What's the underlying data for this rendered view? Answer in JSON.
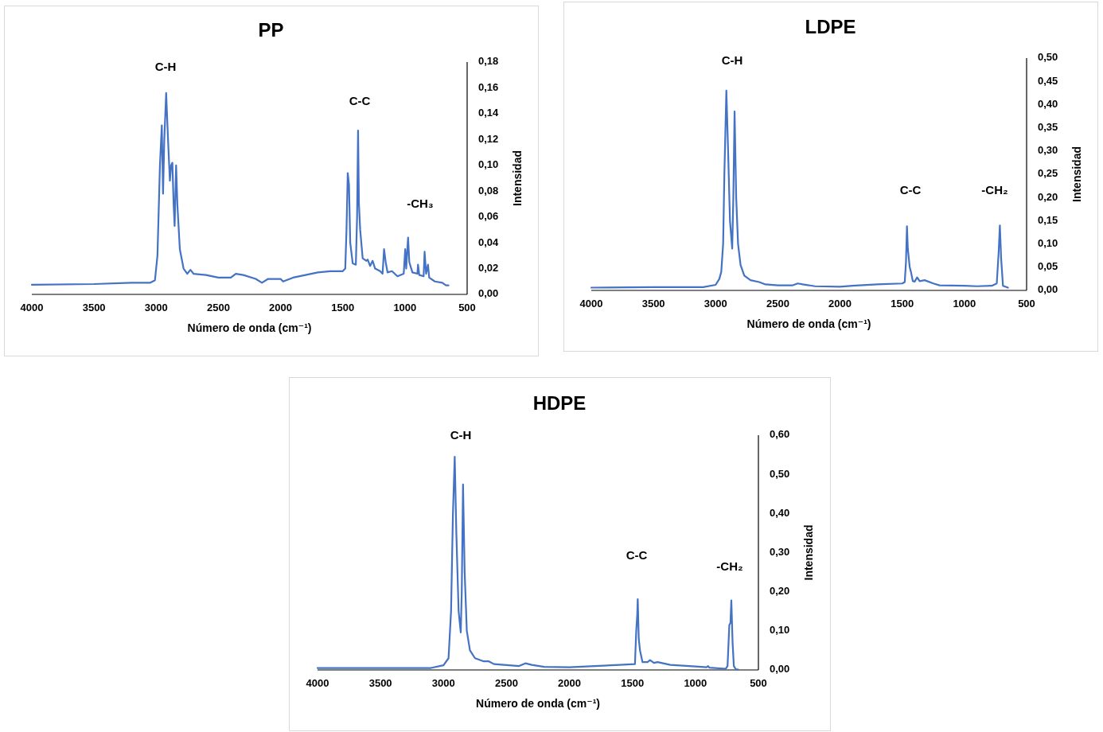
{
  "chart_data": [
    {
      "type": "line",
      "title": "PP",
      "xlabel": "Número de onda (cm⁻¹)",
      "ylabel": "Intensidad",
      "color": "#4472c4",
      "x": [
        4000,
        3500,
        3200,
        3050,
        3010,
        2990,
        2970,
        2955,
        2945,
        2935,
        2920,
        2905,
        2890,
        2880,
        2870,
        2860,
        2852,
        2840,
        2830,
        2810,
        2780,
        2750,
        2725,
        2700,
        2600,
        2500,
        2400,
        2360,
        2300,
        2200,
        2150,
        2100,
        2000,
        1980,
        1900,
        1800,
        1700,
        1600,
        1500,
        1480,
        1470,
        1460,
        1450,
        1440,
        1420,
        1395,
        1385,
        1377,
        1370,
        1360,
        1340,
        1310,
        1300,
        1280,
        1260,
        1240,
        1200,
        1180,
        1168,
        1155,
        1140,
        1105,
        1060,
        1010,
        998,
        990,
        975,
        965,
        940,
        900,
        895,
        885,
        850,
        842,
        830,
        815,
        805,
        760,
        700,
        670,
        650
      ],
      "values": [
        0.0075,
        0.008,
        0.009,
        0.009,
        0.011,
        0.03,
        0.1,
        0.131,
        0.078,
        0.12,
        0.156,
        0.12,
        0.088,
        0.1,
        0.102,
        0.07,
        0.053,
        0.1,
        0.07,
        0.035,
        0.02,
        0.016,
        0.019,
        0.016,
        0.015,
        0.013,
        0.013,
        0.016,
        0.015,
        0.012,
        0.009,
        0.012,
        0.012,
        0.01,
        0.013,
        0.015,
        0.017,
        0.018,
        0.018,
        0.02,
        0.05,
        0.094,
        0.085,
        0.04,
        0.024,
        0.023,
        0.06,
        0.127,
        0.07,
        0.05,
        0.028,
        0.026,
        0.027,
        0.022,
        0.026,
        0.02,
        0.018,
        0.016,
        0.035,
        0.025,
        0.017,
        0.018,
        0.014,
        0.016,
        0.035,
        0.02,
        0.044,
        0.025,
        0.017,
        0.016,
        0.023,
        0.015,
        0.014,
        0.033,
        0.016,
        0.023,
        0.013,
        0.01,
        0.009,
        0.007,
        0.007
      ],
      "xlim": [
        4000,
        500
      ],
      "xticks": [
        4000,
        3500,
        3000,
        2500,
        2000,
        1500,
        1000,
        500
      ],
      "ylim": [
        0,
        0.18
      ],
      "yticks": [
        {
          "value": 0,
          "label": "0,00"
        },
        {
          "value": 0.02,
          "label": "0,02"
        },
        {
          "value": 0.04,
          "label": "0,04"
        },
        {
          "value": 0.06,
          "label": "0,06"
        },
        {
          "value": 0.08,
          "label": "0,08"
        },
        {
          "value": 0.1,
          "label": "0,10"
        },
        {
          "value": 0.12,
          "label": "0,12"
        },
        {
          "value": 0.14,
          "label": "0,14"
        },
        {
          "value": 0.16,
          "label": "0,16"
        },
        {
          "value": 0.18,
          "label": "0,18"
        }
      ],
      "annotations": [
        "C-H",
        "C-C",
        "-CH₃"
      ]
    },
    {
      "type": "line",
      "title": "LDPE",
      "xlabel": "Número de onda (cm⁻¹)",
      "ylabel": "Intensidad",
      "color": "#4472c4",
      "x": [
        4000,
        3500,
        3100,
        3000,
        2970,
        2955,
        2940,
        2930,
        2914,
        2900,
        2885,
        2867,
        2858,
        2848,
        2835,
        2820,
        2800,
        2770,
        2720,
        2650,
        2600,
        2500,
        2380,
        2340,
        2300,
        2200,
        2000,
        1900,
        1700,
        1500,
        1480,
        1470,
        1462,
        1455,
        1440,
        1430,
        1415,
        1400,
        1380,
        1360,
        1320,
        1250,
        1200,
        1000,
        900,
        780,
        740,
        725,
        715,
        705,
        690,
        650
      ],
      "values": [
        0.006,
        0.007,
        0.007,
        0.012,
        0.025,
        0.04,
        0.1,
        0.25,
        0.43,
        0.3,
        0.15,
        0.09,
        0.2,
        0.385,
        0.2,
        0.1,
        0.055,
        0.032,
        0.022,
        0.018,
        0.013,
        0.011,
        0.011,
        0.015,
        0.013,
        0.009,
        0.008,
        0.01,
        0.013,
        0.015,
        0.018,
        0.06,
        0.138,
        0.09,
        0.05,
        0.04,
        0.02,
        0.019,
        0.028,
        0.02,
        0.022,
        0.015,
        0.011,
        0.01,
        0.009,
        0.01,
        0.015,
        0.08,
        0.14,
        0.07,
        0.01,
        0.006
      ],
      "xlim": [
        4000,
        500
      ],
      "xticks": [
        4000,
        3500,
        3000,
        2500,
        2000,
        1500,
        1000,
        500
      ],
      "ylim": [
        0,
        0.5
      ],
      "yticks": [
        {
          "value": 0,
          "label": "0,00"
        },
        {
          "value": 0.05,
          "label": "0,05"
        },
        {
          "value": 0.1,
          "label": "0,10"
        },
        {
          "value": 0.15,
          "label": "0,15"
        },
        {
          "value": 0.2,
          "label": "0,20"
        },
        {
          "value": 0.25,
          "label": "0,25"
        },
        {
          "value": 0.3,
          "label": "0,30"
        },
        {
          "value": 0.35,
          "label": "0,35"
        },
        {
          "value": 0.4,
          "label": "0,40"
        },
        {
          "value": 0.45,
          "label": "0,45"
        },
        {
          "value": 0.5,
          "label": "0,50"
        }
      ],
      "annotations": [
        "C-H",
        "C-C",
        "-CH₂"
      ]
    },
    {
      "type": "line",
      "title": "HDPE",
      "xlabel": "Número de onda (cm⁻¹)",
      "ylabel": "Intensidad",
      "color": "#4472c4",
      "x": [
        4000,
        3500,
        3100,
        3000,
        2960,
        2940,
        2925,
        2911,
        2898,
        2880,
        2863,
        2855,
        2845,
        2832,
        2815,
        2790,
        2750,
        2680,
        2640,
        2600,
        2400,
        2350,
        2300,
        2200,
        2000,
        1800,
        1600,
        1480,
        1470,
        1462,
        1458,
        1450,
        1440,
        1420,
        1380,
        1360,
        1330,
        1300,
        1200,
        1000,
        910,
        900,
        890,
        760,
        745,
        731,
        722,
        715,
        705,
        695,
        680,
        660
      ],
      "values": [
        0.005,
        0.005,
        0.005,
        0.012,
        0.03,
        0.15,
        0.4,
        0.545,
        0.35,
        0.15,
        0.096,
        0.2,
        0.474,
        0.25,
        0.1,
        0.05,
        0.03,
        0.022,
        0.022,
        0.015,
        0.01,
        0.017,
        0.013,
        0.008,
        0.007,
        0.01,
        0.013,
        0.015,
        0.1,
        0.14,
        0.181,
        0.08,
        0.05,
        0.02,
        0.02,
        0.025,
        0.018,
        0.02,
        0.013,
        0.009,
        0.007,
        0.01,
        0.006,
        0.003,
        0.01,
        0.115,
        0.12,
        0.178,
        0.07,
        0.01,
        0.002,
        0.001
      ],
      "xlim": [
        4000,
        500
      ],
      "xticks": [
        4000,
        3500,
        3000,
        2500,
        2000,
        1500,
        1000,
        500
      ],
      "ylim": [
        0,
        0.6
      ],
      "yticks": [
        {
          "value": 0,
          "label": "0,00"
        },
        {
          "value": 0.1,
          "label": "0,10"
        },
        {
          "value": 0.2,
          "label": "0,20"
        },
        {
          "value": 0.3,
          "label": "0,30"
        },
        {
          "value": 0.4,
          "label": "0,40"
        },
        {
          "value": 0.5,
          "label": "0,50"
        },
        {
          "value": 0.6,
          "label": "0,60"
        }
      ],
      "annotations": [
        "C-H",
        "C-C",
        "-CH₂"
      ]
    }
  ]
}
